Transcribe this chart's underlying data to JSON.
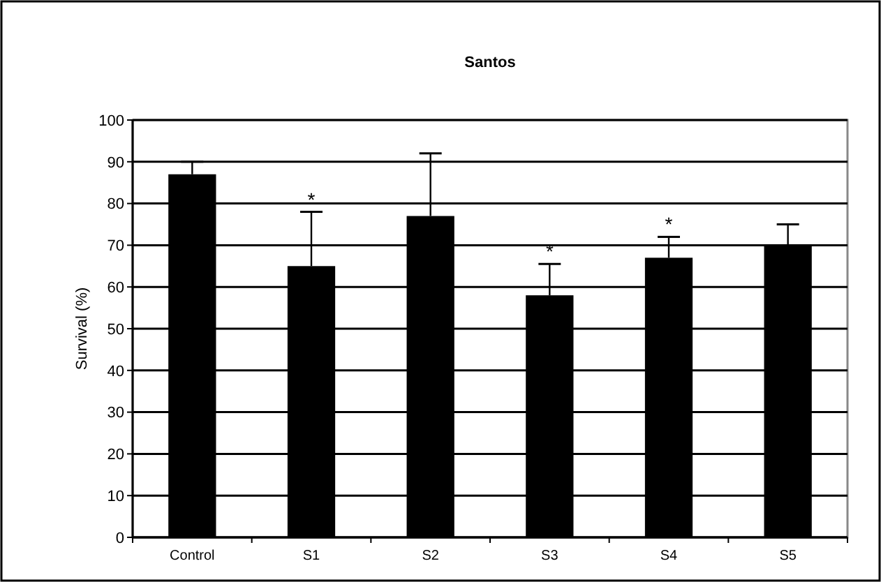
{
  "chart_data": {
    "type": "bar",
    "title": "Santos",
    "ylabel": "Survival (%)",
    "categories": [
      "Control",
      "S1",
      "S2",
      "S3",
      "S4",
      "S5"
    ],
    "values": [
      87,
      65,
      77,
      58,
      67,
      70
    ],
    "errors": [
      [
        87,
        90
      ],
      [
        65,
        78
      ],
      [
        77,
        92
      ],
      [
        58,
        65.5
      ],
      [
        67,
        72
      ],
      [
        70,
        75
      ]
    ],
    "color": "#000000",
    "ylim": [
      0,
      100
    ],
    "yticks": [
      0,
      10,
      20,
      30,
      40,
      50,
      60,
      70,
      80,
      90,
      100
    ],
    "grid": "y",
    "value_labels": [
      null,
      "*",
      null,
      "*",
      "*",
      null
    ]
  }
}
